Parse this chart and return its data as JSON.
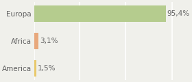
{
  "categories": [
    "Europa",
    "Africa",
    "America"
  ],
  "values": [
    95.4,
    3.1,
    1.5
  ],
  "labels": [
    "95,4%",
    "3,1%",
    "1,5%"
  ],
  "bar_colors": [
    "#b5cc8e",
    "#e8a87c",
    "#e8c86a"
  ],
  "background_color": "#f0f0eb",
  "grid_color": "#ffffff",
  "text_color": "#606060",
  "label_fontsize": 7.5,
  "tick_fontsize": 7.5,
  "xlim": [
    0,
    110
  ],
  "grid_ticks": [
    0,
    33,
    66,
    100
  ]
}
